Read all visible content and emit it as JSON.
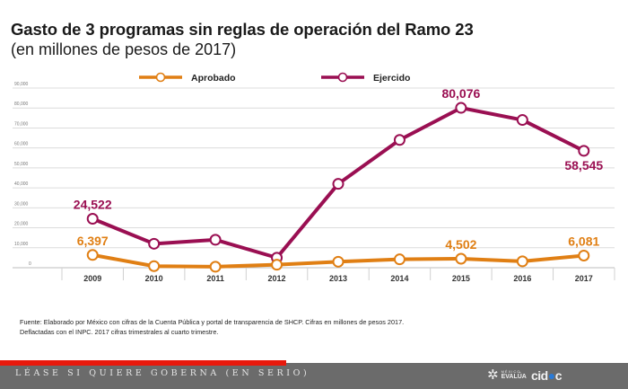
{
  "header": {
    "title": "Gasto de 3 programas sin reglas de operación del Ramo 23",
    "subtitle": "(en millones de pesos de 2017)"
  },
  "colors": {
    "aprobado": "#e07f14",
    "ejercido": "#9a0f52",
    "grid": "#d6d6d6",
    "footer_bg": "#6b6b6b",
    "footer_accent": "#e8190c"
  },
  "chart_data": {
    "type": "line",
    "title": "Gasto de 3 programas sin reglas de operación del Ramo 23",
    "subtitle": "(en millones de pesos de 2017)",
    "xlabel": "",
    "ylabel": "",
    "ylim": [
      0,
      90000
    ],
    "yticks": [
      0,
      10000,
      20000,
      30000,
      40000,
      50000,
      60000,
      70000,
      80000,
      90000
    ],
    "ytick_labels": [
      "0",
      "10,000",
      "20,000",
      "30,000",
      "40,000",
      "50,000",
      "60,000",
      "70,000",
      "80,000",
      "90,000"
    ],
    "grid": true,
    "legend_position": "top-center",
    "categories": [
      "2009",
      "2010",
      "2011",
      "2012",
      "2013",
      "2014",
      "2015",
      "2016",
      "2017"
    ],
    "series": [
      {
        "name": "Aprobado",
        "color": "#e07f14",
        "values": [
          6397,
          800,
          500,
          1500,
          3000,
          4200,
          4502,
          3200,
          6081
        ],
        "labels": [
          {
            "index": 0,
            "text": "6,397",
            "position": "above"
          },
          {
            "index": 6,
            "text": "4,502",
            "position": "above"
          },
          {
            "index": 8,
            "text": "6,081",
            "position": "above"
          }
        ]
      },
      {
        "name": "Ejercido",
        "color": "#9a0f52",
        "values": [
          24522,
          12000,
          14000,
          5000,
          42000,
          64000,
          80076,
          74000,
          58545
        ],
        "labels": [
          {
            "index": 0,
            "text": "24,522",
            "position": "above"
          },
          {
            "index": 6,
            "text": "80,076",
            "position": "above"
          },
          {
            "index": 8,
            "text": "58,545",
            "position": "below"
          }
        ]
      }
    ]
  },
  "note": {
    "line1": "Fuente: Elaborado por México con cifras de la Cuenta Pública y portal de transparencia de SHCP. Cifras en millones de pesos 2017.",
    "line2": "Deflactadas con el INPC. 2017 cifras trimestrales al cuarto trimestre."
  },
  "footer": {
    "tagline": "LÉASE SI QUIERE GOBERNA (EN SERIO)",
    "logo1_small": "MÉXICO",
    "logo1_big": "EVALÚA",
    "logo2_a": "cid",
    "logo2_dot": "●",
    "logo2_b": "c"
  }
}
